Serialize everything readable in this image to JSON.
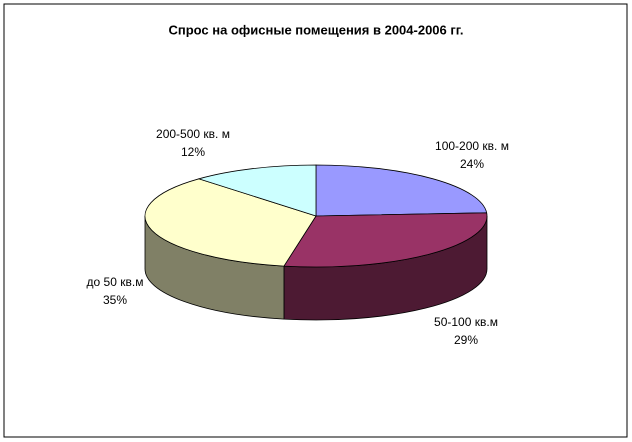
{
  "chart_data": {
    "type": "pie3d",
    "title": "Спрос на офисные помещения в 2004-2006 гг.",
    "categories": [
      "100-200 кв. м",
      "50-100 кв.м",
      "до 50 кв.м",
      "200-500 кв. м"
    ],
    "values": [
      24,
      29,
      35,
      12
    ],
    "value_labels": [
      "24%",
      "29%",
      "35%",
      "12%"
    ],
    "colors": [
      "#9999ff",
      "#993366",
      "#ffffcc",
      "#ccffff"
    ]
  }
}
